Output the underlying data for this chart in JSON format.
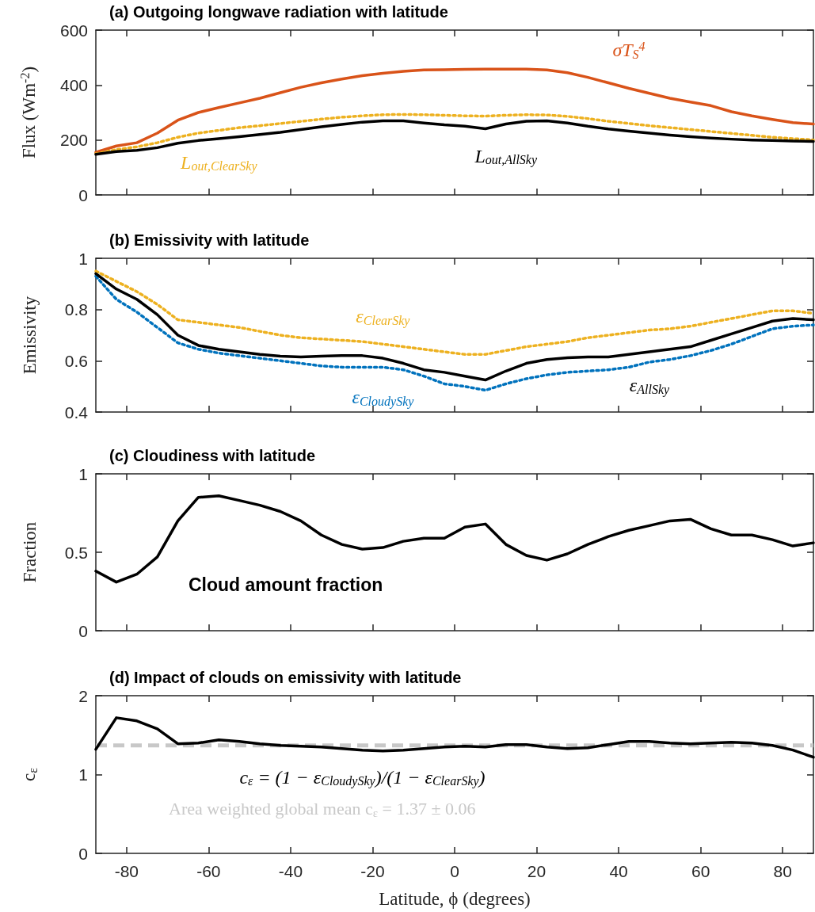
{
  "chart_data": [
    {
      "type": "line",
      "title": "(a) Outgoing longwave radiation with latitude",
      "ylabel": "Flux (Wm$^{-2}$)",
      "x": [
        -87.5,
        -82.5,
        -77.5,
        -72.5,
        -67.5,
        -62.5,
        -57.5,
        -52.5,
        -47.5,
        -42.5,
        -37.5,
        -32.5,
        -27.5,
        -22.5,
        -17.5,
        -12.5,
        -7.5,
        -2.5,
        2.5,
        7.5,
        12.5,
        17.5,
        22.5,
        27.5,
        32.5,
        37.5,
        42.5,
        47.5,
        52.5,
        57.5,
        62.5,
        67.5,
        72.5,
        77.5,
        82.5,
        87.5
      ],
      "xlim": [
        -87.5,
        87.5
      ],
      "xticks": [
        -80,
        -60,
        -40,
        -20,
        0,
        20,
        40,
        60,
        80
      ],
      "ylim": [
        0,
        600
      ],
      "yticks": [
        0,
        200,
        400,
        600
      ],
      "tick_labels": "y",
      "grid": false,
      "legend": false,
      "marker": "none",
      "series": [
        {
          "name": "σT$_{S}$$^{4}$",
          "color": "#d95319",
          "line_style": "solid",
          "values": [
            155,
            178,
            190,
            225,
            272,
            300,
            318,
            335,
            352,
            372,
            392,
            408,
            422,
            434,
            443,
            450,
            455,
            456,
            457,
            458,
            458,
            458,
            455,
            445,
            428,
            408,
            388,
            370,
            352,
            338,
            325,
            303,
            288,
            275,
            263,
            258
          ]
        },
        {
          "name": "L$_{out,ClearSky}$",
          "color": "#edb120",
          "line_style": "dotted",
          "values": [
            150,
            165,
            175,
            190,
            210,
            225,
            235,
            245,
            252,
            260,
            268,
            276,
            283,
            288,
            292,
            293,
            292,
            290,
            288,
            287,
            290,
            292,
            291,
            286,
            278,
            268,
            260,
            252,
            245,
            238,
            231,
            224,
            217,
            210,
            205,
            200
          ]
        },
        {
          "name": "L$_{out,AllSky}$",
          "color": "#000000",
          "line_style": "solid",
          "values": [
            148,
            158,
            162,
            172,
            188,
            198,
            205,
            212,
            220,
            228,
            238,
            248,
            257,
            265,
            270,
            270,
            262,
            255,
            250,
            241,
            258,
            268,
            270,
            262,
            250,
            240,
            232,
            225,
            218,
            212,
            207,
            203,
            200,
            198,
            196,
            195
          ]
        }
      ]
    },
    {
      "type": "line",
      "title": "(b) Emissivity with latitude",
      "ylabel": "Emissivity",
      "x": [
        -87.5,
        -82.5,
        -77.5,
        -72.5,
        -67.5,
        -62.5,
        -57.5,
        -52.5,
        -47.5,
        -42.5,
        -37.5,
        -32.5,
        -27.5,
        -22.5,
        -17.5,
        -12.5,
        -7.5,
        -2.5,
        2.5,
        7.5,
        12.5,
        17.5,
        22.5,
        27.5,
        32.5,
        37.5,
        42.5,
        47.5,
        52.5,
        57.5,
        62.5,
        67.5,
        72.5,
        77.5,
        82.5,
        87.5
      ],
      "xlim": [
        -87.5,
        87.5
      ],
      "xticks": [
        -80,
        -60,
        -40,
        -20,
        0,
        20,
        40,
        60,
        80
      ],
      "ylim": [
        0.4,
        1
      ],
      "yticks": [
        0.4,
        0.6,
        0.8,
        1
      ],
      "tick_labels": "y",
      "grid": false,
      "legend": false,
      "marker": "none",
      "series": [
        {
          "name": "ε$_{ClearSky}$",
          "color": "#edb120",
          "line_style": "dotted",
          "values": [
            0.95,
            0.91,
            0.87,
            0.82,
            0.76,
            0.75,
            0.74,
            0.73,
            0.715,
            0.7,
            0.69,
            0.685,
            0.68,
            0.675,
            0.665,
            0.655,
            0.645,
            0.635,
            0.625,
            0.625,
            0.64,
            0.655,
            0.665,
            0.675,
            0.69,
            0.7,
            0.71,
            0.72,
            0.725,
            0.735,
            0.75,
            0.765,
            0.78,
            0.795,
            0.795,
            0.785
          ]
        },
        {
          "name": "ε$_{CloudySky}$",
          "color": "#0072bd",
          "line_style": "dotted",
          "values": [
            0.93,
            0.84,
            0.79,
            0.73,
            0.67,
            0.645,
            0.63,
            0.62,
            0.61,
            0.6,
            0.59,
            0.58,
            0.575,
            0.575,
            0.575,
            0.565,
            0.54,
            0.51,
            0.5,
            0.485,
            0.51,
            0.53,
            0.545,
            0.555,
            0.56,
            0.565,
            0.575,
            0.595,
            0.605,
            0.62,
            0.64,
            0.665,
            0.695,
            0.725,
            0.735,
            0.74
          ]
        },
        {
          "name": "ε$_{AllSky}$",
          "color": "#000000",
          "line_style": "solid",
          "values": [
            0.94,
            0.88,
            0.84,
            0.78,
            0.7,
            0.66,
            0.645,
            0.635,
            0.625,
            0.618,
            0.615,
            0.618,
            0.62,
            0.62,
            0.61,
            0.59,
            0.565,
            0.555,
            0.54,
            0.525,
            0.56,
            0.59,
            0.605,
            0.612,
            0.615,
            0.615,
            0.625,
            0.635,
            0.645,
            0.655,
            0.68,
            0.705,
            0.73,
            0.755,
            0.765,
            0.76
          ]
        }
      ]
    },
    {
      "type": "line",
      "title": "(c) Cloudiness with latitude",
      "ylabel": "Fraction",
      "annotations": [
        "Cloud amount fraction"
      ],
      "x": [
        -87.5,
        -82.5,
        -77.5,
        -72.5,
        -67.5,
        -62.5,
        -57.5,
        -52.5,
        -47.5,
        -42.5,
        -37.5,
        -32.5,
        -27.5,
        -22.5,
        -17.5,
        -12.5,
        -7.5,
        -2.5,
        2.5,
        7.5,
        12.5,
        17.5,
        22.5,
        27.5,
        32.5,
        37.5,
        42.5,
        47.5,
        52.5,
        57.5,
        62.5,
        67.5,
        72.5,
        77.5,
        82.5,
        87.5
      ],
      "xlim": [
        -87.5,
        87.5
      ],
      "xticks": [
        -80,
        -60,
        -40,
        -20,
        0,
        20,
        40,
        60,
        80
      ],
      "ylim": [
        0,
        1
      ],
      "yticks": [
        0,
        0.5,
        1
      ],
      "tick_labels": "y",
      "grid": false,
      "legend": false,
      "marker": "none",
      "series": [
        {
          "color": "#000000",
          "line_style": "solid",
          "values": [
            0.38,
            0.31,
            0.36,
            0.47,
            0.7,
            0.85,
            0.86,
            0.83,
            0.8,
            0.76,
            0.7,
            0.61,
            0.55,
            0.52,
            0.53,
            0.57,
            0.59,
            0.59,
            0.66,
            0.68,
            0.55,
            0.48,
            0.45,
            0.49,
            0.55,
            0.6,
            0.64,
            0.67,
            0.7,
            0.71,
            0.65,
            0.61,
            0.61,
            0.58,
            0.54,
            0.56
          ]
        }
      ]
    },
    {
      "type": "line",
      "title": "(d) Impact of clouds on emissivity with latitude",
      "ylabel": "c$_{ε}$",
      "xlabel": "Latitude, ϕ (degrees)",
      "x": [
        -87.5,
        -82.5,
        -77.5,
        -72.5,
        -67.5,
        -62.5,
        -57.5,
        -52.5,
        -47.5,
        -42.5,
        -37.5,
        -32.5,
        -27.5,
        -22.5,
        -17.5,
        -12.5,
        -7.5,
        -2.5,
        2.5,
        7.5,
        12.5,
        17.5,
        22.5,
        27.5,
        32.5,
        37.5,
        42.5,
        47.5,
        52.5,
        57.5,
        62.5,
        67.5,
        72.5,
        77.5,
        82.5,
        87.5
      ],
      "xlim": [
        -87.5,
        87.5
      ],
      "xticks": [
        -80,
        -60,
        -40,
        -20,
        0,
        20,
        40,
        60,
        80
      ],
      "ylim": [
        0,
        2
      ],
      "yticks": [
        0,
        1,
        2
      ],
      "grid": false,
      "legend": false,
      "marker": "none",
      "ref_lines": [
        {
          "axis": "y",
          "value": 1.37,
          "label": "Area weighted global mean c$_{ε}$ = 1.37 ± 0.06",
          "color": "#c8c8c8",
          "line_style": "dashed"
        }
      ],
      "series": [
        {
          "name": "c$_{ε}$ = (1 − ε$_{CloudySky}$)/(1 − ε$_{ClearSky}$)",
          "color": "#000000",
          "line_style": "solid",
          "values": [
            1.32,
            1.72,
            1.68,
            1.58,
            1.39,
            1.4,
            1.44,
            1.42,
            1.39,
            1.37,
            1.36,
            1.35,
            1.33,
            1.31,
            1.3,
            1.31,
            1.33,
            1.35,
            1.36,
            1.35,
            1.38,
            1.38,
            1.35,
            1.33,
            1.34,
            1.38,
            1.42,
            1.42,
            1.4,
            1.39,
            1.4,
            1.41,
            1.4,
            1.37,
            1.31,
            1.22
          ]
        }
      ]
    }
  ]
}
